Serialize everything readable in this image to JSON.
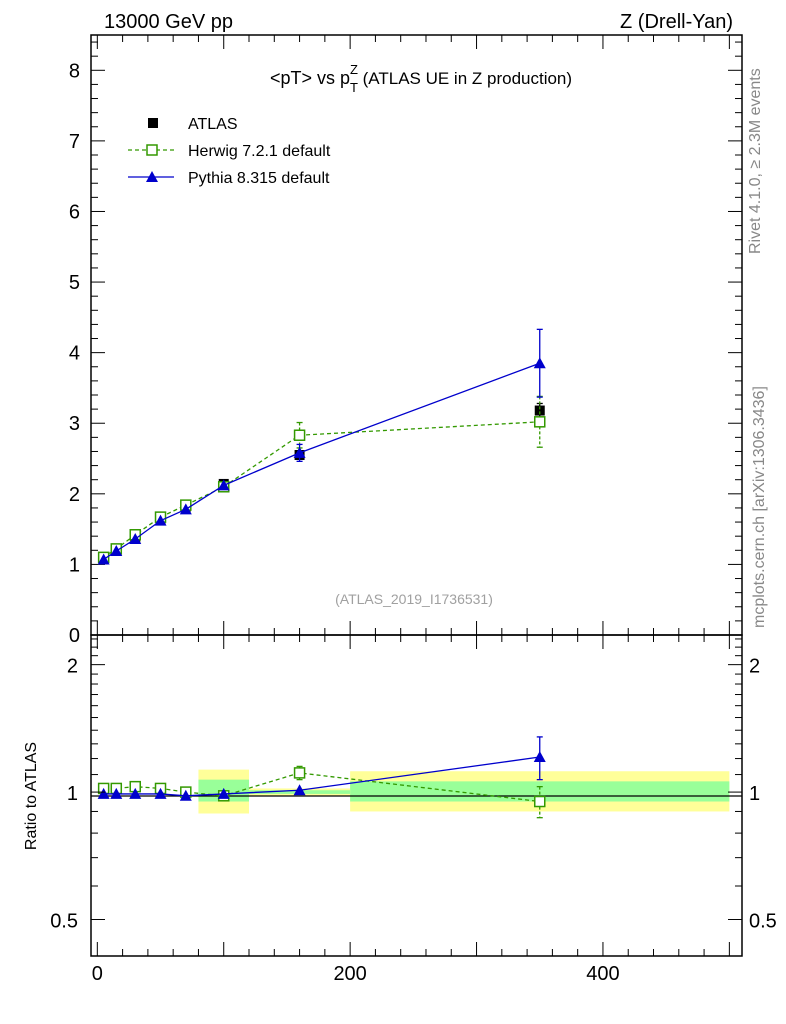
{
  "header": {
    "left": "13000 GeV pp",
    "right": "Z (Drell-Yan)"
  },
  "side_labels": {
    "rivet": "Rivet 4.1.0, ≥ 2.3M events",
    "mcplots": "mcplots.cern.ch [arXiv:1306.3436]"
  },
  "chart_data": [
    {
      "type": "scatter",
      "panel": "main",
      "title": "<pT> vs p",
      "title_sup": "Z",
      "title_sub": "T",
      "title_suffix": " (ATLAS UE in Z production)",
      "analysis_label": "(ATLAS_2019_I1736531)",
      "ylim": [
        0,
        8.5
      ],
      "xlim": [
        -5,
        510
      ],
      "y_ticks": [
        "0",
        "1",
        "2",
        "3",
        "4",
        "5",
        "6",
        "7",
        "8"
      ],
      "legend": [
        "ATLAS",
        "Herwig 7.2.1 default",
        "Pythia 8.315 default"
      ],
      "series": [
        {
          "name": "ATLAS",
          "color": "#000000",
          "marker": "filled-square",
          "x": [
            5,
            15,
            30,
            50,
            70,
            100,
            160,
            350
          ],
          "y": [
            1.08,
            1.2,
            1.37,
            1.63,
            1.82,
            2.14,
            2.55,
            3.18
          ],
          "yerr": [
            0.01,
            0.01,
            0.01,
            0.02,
            0.02,
            0.04,
            0.05,
            0.1
          ]
        },
        {
          "name": "Herwig 7.2.1 default",
          "color": "#339900",
          "marker": "open-square",
          "x": [
            5,
            15,
            30,
            50,
            70,
            100,
            160,
            350
          ],
          "y": [
            1.1,
            1.22,
            1.42,
            1.67,
            1.84,
            2.1,
            2.83,
            3.02
          ],
          "yerr": [
            0.01,
            0.02,
            0.02,
            0.02,
            0.03,
            0.05,
            0.18,
            0.36
          ]
        },
        {
          "name": "Pythia 8.315 default",
          "color": "#0000cc",
          "marker": "filled-triangle",
          "x": [
            5,
            15,
            30,
            50,
            70,
            100,
            160,
            350
          ],
          "y": [
            1.07,
            1.19,
            1.36,
            1.62,
            1.78,
            2.12,
            2.58,
            3.85
          ],
          "yerr": [
            0.01,
            0.01,
            0.02,
            0.02,
            0.03,
            0.04,
            0.12,
            0.48
          ]
        }
      ]
    },
    {
      "type": "scatter",
      "panel": "ratio",
      "ylabel": "Ratio to ATLAS",
      "ylim": [
        0.41,
        2.35
      ],
      "xlim": [
        -5,
        510
      ],
      "y_ticks": [
        "0.5",
        "1",
        "2"
      ],
      "y_tick_values": [
        0.5,
        1,
        2
      ],
      "x_ticks": [
        "0",
        "200",
        "400"
      ],
      "x_tick_values": [
        0,
        200,
        400
      ],
      "bands": [
        {
          "xmin": 80,
          "xmax": 120,
          "yellow": [
            0.89,
            1.13
          ],
          "green": [
            0.95,
            1.07
          ]
        },
        {
          "xmin": 120,
          "xmax": 200,
          "yellow": [
            0.98,
            1.02
          ],
          "green": [
            0.99,
            1.01
          ]
        },
        {
          "xmin": 200,
          "xmax": 500,
          "yellow": [
            0.9,
            1.12
          ],
          "green": [
            0.95,
            1.06
          ]
        }
      ],
      "band_colors": {
        "yellow": "#ffff99",
        "green": "#99ff99"
      },
      "series": [
        {
          "name": "Herwig 7.2.1 default",
          "color": "#339900",
          "marker": "open-square",
          "x": [
            5,
            15,
            30,
            50,
            70,
            100,
            160,
            350
          ],
          "y": [
            1.02,
            1.02,
            1.03,
            1.02,
            1.0,
            0.98,
            1.11,
            0.95
          ],
          "yerr": [
            0.01,
            0.01,
            0.01,
            0.01,
            0.01,
            0.02,
            0.04,
            0.08
          ]
        },
        {
          "name": "Pythia 8.315 default",
          "color": "#0000cc",
          "marker": "filled-triangle",
          "x": [
            5,
            15,
            30,
            50,
            70,
            100,
            160,
            350
          ],
          "y": [
            0.99,
            0.99,
            0.99,
            0.99,
            0.98,
            0.99,
            1.01,
            1.21
          ],
          "yerr": [
            0.01,
            0.01,
            0.01,
            0.01,
            0.01,
            0.02,
            0.02,
            0.14
          ]
        }
      ]
    }
  ]
}
